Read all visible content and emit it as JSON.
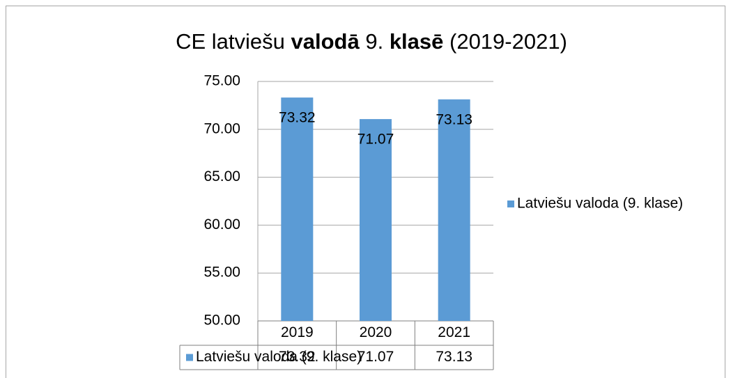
{
  "chart_data": {
    "type": "bar",
    "title": [
      "CE latviešu ",
      "valodā",
      " 9. ",
      "klasē",
      " (2019-2021)"
    ],
    "title_bold": [
      false,
      true,
      false,
      true,
      false
    ],
    "categories": [
      "2019",
      "2020",
      "2021"
    ],
    "series": [
      {
        "name": "Latviešu valoda (9. klase)",
        "color": "#5b9bd5",
        "values": [
          73.32,
          71.07,
          73.13
        ]
      }
    ],
    "ylim": [
      50,
      75
    ],
    "yticks": [
      {
        "value": 50,
        "label": "50.00"
      },
      {
        "value": 55,
        "label": "55.00"
      },
      {
        "value": 60,
        "label": "60.00"
      },
      {
        "value": 65,
        "label": "65.00"
      },
      {
        "value": 70,
        "label": "70.00"
      },
      {
        "value": 75,
        "label": "75.00"
      }
    ],
    "grid": true,
    "legend": "right",
    "data_table": true
  }
}
